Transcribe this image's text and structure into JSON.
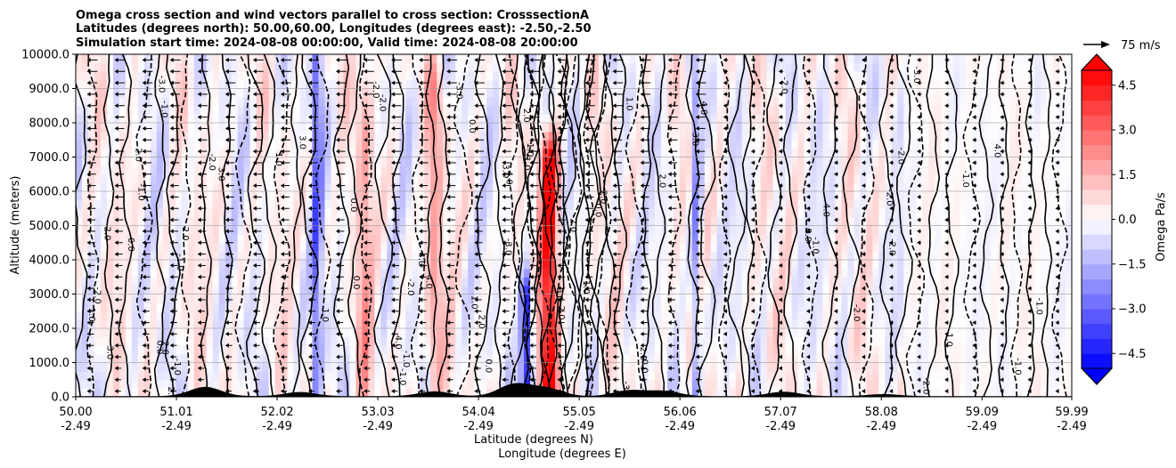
{
  "chart_data": {
    "type": "contour",
    "title_lines": [
      "Omega cross section and wind vectors parallel to cross section: CrosssectionA",
      "Latitudes (degrees north): 50.00,60.00, Longitudes (degrees east): -2.50,-2.50",
      "Simulation start time: 2024-08-08 00:00:00, Valid time: 2024-08-08 20:00:00"
    ],
    "ylabel": "Altitude (meters)",
    "xlabel_lines": [
      "Latitude (degrees N)",
      "Longitude (degrees E)"
    ],
    "ylim": [
      0,
      10000
    ],
    "y_ticks": [
      {
        "value": 0,
        "label": "0.0"
      },
      {
        "value": 1000,
        "label": "1000.0"
      },
      {
        "value": 2000,
        "label": "2000.0"
      },
      {
        "value": 3000,
        "label": "3000.0"
      },
      {
        "value": 4000,
        "label": "4000.0"
      },
      {
        "value": 5000,
        "label": "5000.0"
      },
      {
        "value": 6000,
        "label": "6000.0"
      },
      {
        "value": 7000,
        "label": "7000.0"
      },
      {
        "value": 8000,
        "label": "8000.0"
      },
      {
        "value": 9000,
        "label": "9000.0"
      },
      {
        "value": 10000,
        "label": "10000.0"
      }
    ],
    "x_range": [
      50.0,
      59.99
    ],
    "x_ticks": [
      {
        "lat": 50.0,
        "lat_label": "50.00",
        "lon_label": "-2.49"
      },
      {
        "lat": 51.01,
        "lat_label": "51.01",
        "lon_label": "-2.49"
      },
      {
        "lat": 52.02,
        "lat_label": "52.02",
        "lon_label": "-2.49"
      },
      {
        "lat": 53.03,
        "lat_label": "53.03",
        "lon_label": "-2.49"
      },
      {
        "lat": 54.04,
        "lat_label": "54.04",
        "lon_label": "-2.49"
      },
      {
        "lat": 55.05,
        "lat_label": "55.05",
        "lon_label": "-2.49"
      },
      {
        "lat": 56.06,
        "lat_label": "56.06",
        "lon_label": "-2.49"
      },
      {
        "lat": 57.07,
        "lat_label": "57.07",
        "lon_label": "-2.49"
      },
      {
        "lat": 58.08,
        "lat_label": "58.08",
        "lon_label": "-2.49"
      },
      {
        "lat": 59.09,
        "lat_label": "59.09",
        "lon_label": "-2.49"
      },
      {
        "lat": 59.99,
        "lat_label": "59.99",
        "lon_label": "-2.49"
      }
    ],
    "grid": "horizontal",
    "colorbar": {
      "label": "Omega Pa/s",
      "range": [
        -5.0,
        5.0
      ],
      "ticks": [
        {
          "value": 4.5,
          "label": "4.5"
        },
        {
          "value": 3.0,
          "label": "3.0"
        },
        {
          "value": 1.5,
          "label": "1.5"
        },
        {
          "value": 0.0,
          "label": "0.0"
        },
        {
          "value": -1.5,
          "label": "−1.5"
        },
        {
          "value": -3.0,
          "label": "−3.0"
        },
        {
          "value": -4.5,
          "label": "−4.5"
        }
      ],
      "extend": "both",
      "low_color": "#0000ff",
      "mid_color": "#ffffff",
      "high_color": "#ff0000"
    },
    "quiver_key": {
      "label": "75 m/s",
      "speed": 75
    },
    "contour_labels": [
      "1.0",
      "0.0",
      "-1.0",
      "2.0",
      "-2.0",
      "3.0",
      "-3.0",
      "4.0"
    ],
    "features": [
      {
        "name": "strong-updraft-core",
        "lat_center": 54.75,
        "lat_width": 0.09,
        "alt_top": 6800,
        "omega": 5.2
      },
      {
        "name": "strong-downdraft-core",
        "lat_center": 54.52,
        "lat_width": 0.06,
        "alt_top": 2800,
        "omega": -5.0
      },
      {
        "name": "downdraft-column-52.4",
        "lat_center": 52.42,
        "lat_width": 0.05,
        "alt_top": 10000,
        "omega": -2.8
      },
      {
        "name": "downdraft-column-56.2",
        "lat_center": 56.22,
        "lat_width": 0.05,
        "alt_top": 8500,
        "omega": -2.2
      },
      {
        "name": "updraft-column-53.5",
        "lat_center": 53.6,
        "lat_width": 0.08,
        "alt_top": 9000,
        "omega": 1.6
      },
      {
        "name": "updraft-column-52.9",
        "lat_center": 52.9,
        "lat_width": 0.08,
        "alt_top": 10000,
        "omega": 1.4
      }
    ]
  }
}
